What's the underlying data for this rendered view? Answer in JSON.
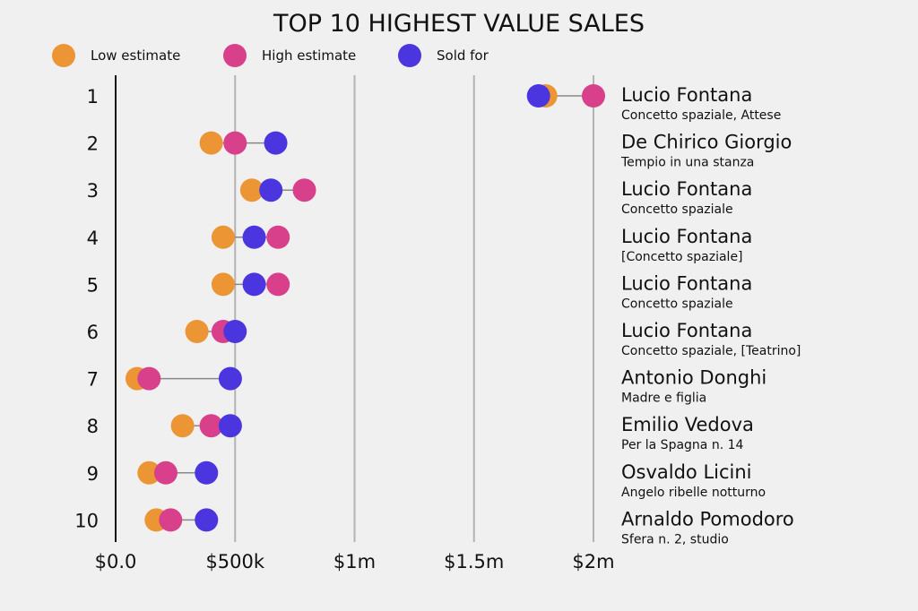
{
  "chart_data": {
    "type": "dot-plot",
    "title": "TOP 10 HIGHEST VALUE SALES",
    "legend": [
      {
        "key": "low",
        "label": "Low estimate",
        "color": "#ec9535"
      },
      {
        "key": "high",
        "label": "High estimate",
        "color": "#d9408b"
      },
      {
        "key": "sold",
        "label": "Sold for",
        "color": "#4b35de"
      }
    ],
    "x_ticks": [
      {
        "value": 0,
        "label": "$0.0"
      },
      {
        "value": 500000,
        "label": "$500k"
      },
      {
        "value": 1000000,
        "label": "$1m"
      },
      {
        "value": 1500000,
        "label": "$1.5m"
      },
      {
        "value": 2000000,
        "label": "$2m"
      }
    ],
    "xlim": [
      0,
      2000000
    ],
    "rows": [
      {
        "rank": "1",
        "artist": "Lucio Fontana",
        "work": "Concetto spaziale, Attese",
        "low": 1800000,
        "high": 2000000,
        "sold": 1770000
      },
      {
        "rank": "2",
        "artist": "De Chirico Giorgio",
        "work": "Tempio in una stanza",
        "low": 400000,
        "high": 500000,
        "sold": 670000
      },
      {
        "rank": "3",
        "artist": "Lucio Fontana",
        "work": "Concetto spaziale",
        "low": 570000,
        "high": 790000,
        "sold": 650000
      },
      {
        "rank": "4",
        "artist": "Lucio Fontana",
        "work": "[Concetto spaziale]",
        "low": 450000,
        "high": 680000,
        "sold": 580000
      },
      {
        "rank": "5",
        "artist": "Lucio Fontana",
        "work": "Concetto spaziale",
        "low": 450000,
        "high": 680000,
        "sold": 580000
      },
      {
        "rank": "6",
        "artist": "Lucio Fontana",
        "work": "Concetto spaziale, [Teatrino]",
        "low": 340000,
        "high": 450000,
        "sold": 500000
      },
      {
        "rank": "7",
        "artist": "Antonio Donghi",
        "work": "Madre e figlia",
        "low": 90000,
        "high": 140000,
        "sold": 480000
      },
      {
        "rank": "8",
        "artist": "Emilio Vedova",
        "work": "Per la Spagna n. 14",
        "low": 280000,
        "high": 400000,
        "sold": 480000
      },
      {
        "rank": "9",
        "artist": "Osvaldo Licini",
        "work": "Angelo ribelle notturno",
        "low": 140000,
        "high": 210000,
        "sold": 380000
      },
      {
        "rank": "10",
        "artist": "Arnaldo Pomodoro",
        "work": "Sfera n. 2, studio",
        "low": 170000,
        "high": 230000,
        "sold": 380000
      }
    ]
  }
}
